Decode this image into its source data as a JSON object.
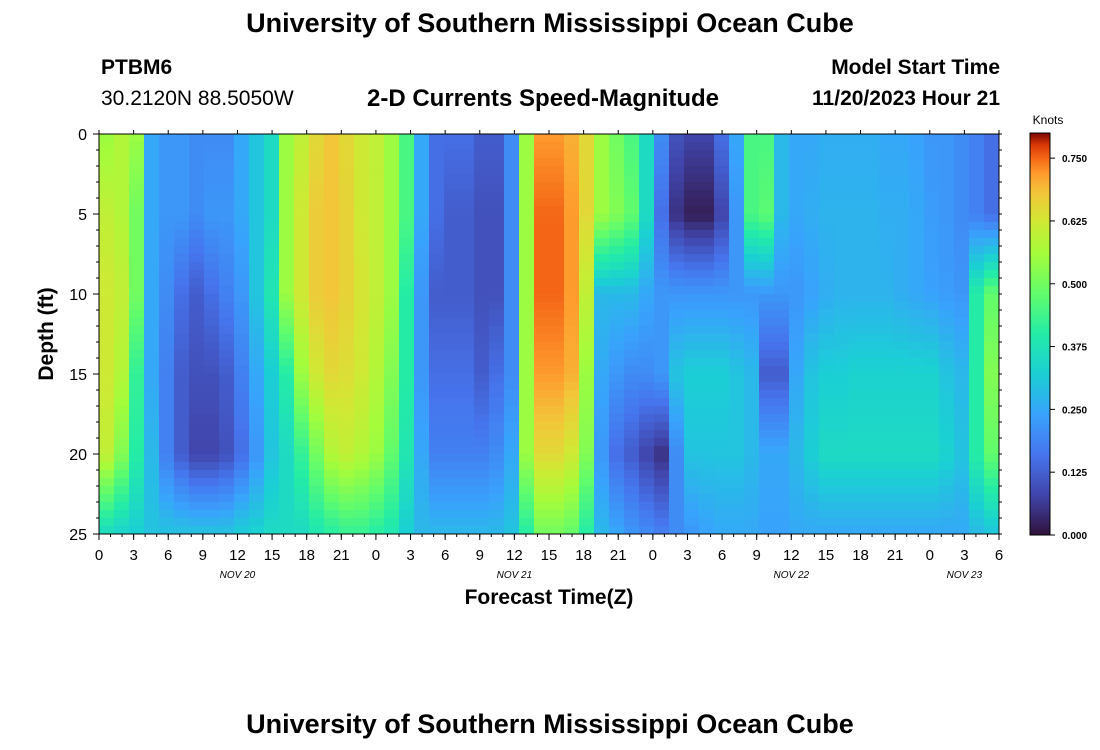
{
  "header": {
    "title_top": "University of Southern Mississippi Ocean Cube",
    "station": "PTBM6",
    "coords": "30.2120N  88.5050W",
    "chart_title": "2-D Currents Speed-Magnitude",
    "model_start_label": "Model Start Time",
    "model_start_value": "11/20/2023 Hour 21",
    "title_bottom": "University of Southern Mississippi Ocean Cube"
  },
  "chart_data": {
    "type": "heatmap",
    "title": "2-D Currents Speed-Magnitude",
    "xlabel": "Forecast Time(Z)",
    "ylabel": "Depth (ft)",
    "colorbar_label": "Knots",
    "colorbar_ticks": [
      "0.750",
      "0.625",
      "0.500",
      "0.375",
      "0.250",
      "0.125",
      "0.000"
    ],
    "colorbar_range": [
      0,
      0.8
    ],
    "x_tick_labels": [
      "0",
      "3",
      "6",
      "9",
      "12",
      "15",
      "18",
      "21",
      "0",
      "3",
      "6",
      "9",
      "12",
      "15",
      "18",
      "21",
      "0",
      "3",
      "6",
      "9",
      "12",
      "15",
      "18",
      "21",
      "0",
      "3",
      "6"
    ],
    "x_range_hours": [
      0,
      78
    ],
    "day_labels": [
      {
        "label": "NOV 20",
        "hour": 12
      },
      {
        "label": "NOV 21",
        "hour": 36
      },
      {
        "label": "NOV 22",
        "hour": 60
      },
      {
        "label": "NOV 23",
        "hour": 75
      }
    ],
    "y_tick_labels": [
      "0",
      "5",
      "10",
      "15",
      "20",
      "25"
    ],
    "ylim": [
      0,
      25
    ],
    "depth_profiles_ft": [
      0,
      5,
      10,
      15,
      20,
      25
    ],
    "speed_knots_by_depth": [
      [
        0.55,
        0.58,
        0.55,
        0.25,
        0.22,
        0.22,
        0.2,
        0.2,
        0.2,
        0.25,
        0.3,
        0.35,
        0.55,
        0.6,
        0.65,
        0.68,
        0.65,
        0.62,
        0.6,
        0.55,
        0.45,
        0.25,
        0.15,
        0.15,
        0.15,
        0.12,
        0.12,
        0.2,
        0.55,
        0.72,
        0.72,
        0.7,
        0.65,
        0.55,
        0.5,
        0.45,
        0.35,
        0.2,
        0.1,
        0.08,
        0.08,
        0.15,
        0.25,
        0.45,
        0.45,
        0.28,
        0.25,
        0.25,
        0.26,
        0.26,
        0.26,
        0.26,
        0.25,
        0.25,
        0.24,
        0.22,
        0.22,
        0.2,
        0.18,
        0.15
      ],
      [
        0.6,
        0.58,
        0.5,
        0.25,
        0.22,
        0.22,
        0.2,
        0.22,
        0.22,
        0.25,
        0.3,
        0.35,
        0.55,
        0.62,
        0.67,
        0.68,
        0.66,
        0.62,
        0.6,
        0.55,
        0.45,
        0.25,
        0.15,
        0.12,
        0.12,
        0.1,
        0.1,
        0.2,
        0.55,
        0.75,
        0.75,
        0.72,
        0.65,
        0.55,
        0.52,
        0.48,
        0.35,
        0.15,
        0.05,
        0.02,
        0.02,
        0.08,
        0.22,
        0.45,
        0.47,
        0.28,
        0.25,
        0.26,
        0.27,
        0.27,
        0.27,
        0.27,
        0.26,
        0.26,
        0.25,
        0.23,
        0.22,
        0.2,
        0.18,
        0.15
      ],
      [
        0.62,
        0.6,
        0.5,
        0.25,
        0.2,
        0.15,
        0.12,
        0.15,
        0.18,
        0.22,
        0.3,
        0.38,
        0.55,
        0.62,
        0.67,
        0.68,
        0.66,
        0.63,
        0.6,
        0.55,
        0.4,
        0.22,
        0.12,
        0.12,
        0.12,
        0.1,
        0.1,
        0.2,
        0.55,
        0.75,
        0.75,
        0.72,
        0.6,
        0.28,
        0.28,
        0.28,
        0.25,
        0.22,
        0.22,
        0.22,
        0.22,
        0.22,
        0.22,
        0.22,
        0.22,
        0.22,
        0.22,
        0.24,
        0.26,
        0.27,
        0.27,
        0.27,
        0.27,
        0.26,
        0.25,
        0.24,
        0.23,
        0.22,
        0.4,
        0.48
      ],
      [
        0.62,
        0.58,
        0.42,
        0.25,
        0.18,
        0.12,
        0.1,
        0.1,
        0.12,
        0.18,
        0.25,
        0.32,
        0.4,
        0.55,
        0.62,
        0.65,
        0.64,
        0.62,
        0.58,
        0.52,
        0.4,
        0.22,
        0.15,
        0.15,
        0.15,
        0.12,
        0.15,
        0.2,
        0.55,
        0.72,
        0.72,
        0.7,
        0.55,
        0.25,
        0.22,
        0.2,
        0.2,
        0.22,
        0.3,
        0.32,
        0.32,
        0.32,
        0.3,
        0.28,
        0.12,
        0.12,
        0.25,
        0.3,
        0.32,
        0.32,
        0.33,
        0.33,
        0.33,
        0.33,
        0.33,
        0.33,
        0.3,
        0.28,
        0.4,
        0.52
      ],
      [
        0.6,
        0.52,
        0.4,
        0.28,
        0.18,
        0.12,
        0.08,
        0.08,
        0.1,
        0.15,
        0.22,
        0.3,
        0.35,
        0.42,
        0.5,
        0.58,
        0.6,
        0.58,
        0.55,
        0.48,
        0.38,
        0.25,
        0.18,
        0.18,
        0.18,
        0.18,
        0.2,
        0.25,
        0.55,
        0.65,
        0.65,
        0.62,
        0.52,
        0.22,
        0.15,
        0.12,
        0.08,
        0.05,
        0.2,
        0.3,
        0.3,
        0.3,
        0.3,
        0.28,
        0.25,
        0.25,
        0.28,
        0.32,
        0.35,
        0.35,
        0.35,
        0.35,
        0.35,
        0.35,
        0.35,
        0.35,
        0.33,
        0.3,
        0.4,
        0.48
      ],
      [
        0.35,
        0.33,
        0.32,
        0.3,
        0.3,
        0.3,
        0.3,
        0.3,
        0.3,
        0.32,
        0.33,
        0.35,
        0.35,
        0.35,
        0.38,
        0.4,
        0.42,
        0.42,
        0.4,
        0.38,
        0.32,
        0.28,
        0.28,
        0.28,
        0.28,
        0.28,
        0.28,
        0.3,
        0.4,
        0.5,
        0.5,
        0.48,
        0.4,
        0.28,
        0.25,
        0.22,
        0.2,
        0.18,
        0.2,
        0.22,
        0.24,
        0.25,
        0.25,
        0.25,
        0.24,
        0.24,
        0.25,
        0.25,
        0.25,
        0.25,
        0.25,
        0.25,
        0.25,
        0.25,
        0.25,
        0.25,
        0.25,
        0.25,
        0.28,
        0.3
      ]
    ]
  }
}
